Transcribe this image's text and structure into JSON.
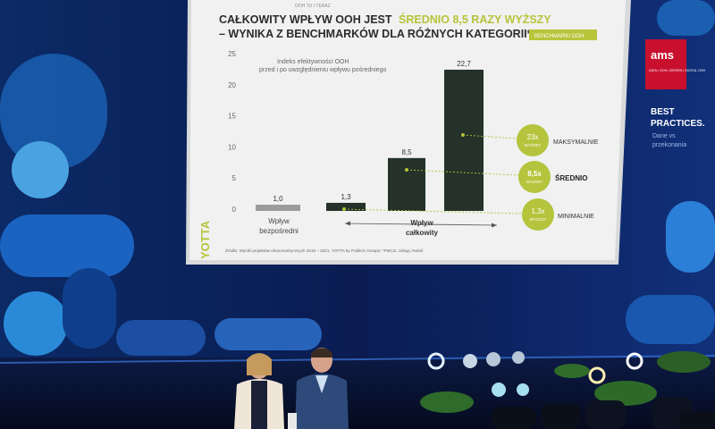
{
  "slide": {
    "header_small": "OOH TU I TERAZ",
    "title_line1": "CAŁKOWITY WPŁYW OOH JEST",
    "title_highlight": "ŚREDNIO 8,5 RAZY WYŻSZY",
    "title_line2": "– WYNIKA Z BENCHMARKÓW DLA RÓŻNYCH KATEGORII*",
    "tag": "BENCHMARKI OOH",
    "chart_note_line1": "Indeks efektywności OOH",
    "chart_note_line2": "przed i po uwzględnieniu wpływu pośredniego",
    "cat_direct_line1": "Wpływ",
    "cat_direct_line2": "bezpośredni",
    "cat_total_line1": "Wpływ",
    "cat_total_line2": "całkowity",
    "circles": [
      {
        "value": "23x",
        "sub": "WYŻSZY",
        "label": "MAKSYMALNIE"
      },
      {
        "value": "8,5x",
        "sub": "WYŻSZY",
        "label": "ŚREDNIO"
      },
      {
        "value": "1,3x",
        "sub": "WYŻSZY",
        "label": "MINIMALNIE"
      }
    ],
    "logo": "YOTTA",
    "source": "Źródło: Wyniki projektów ekonometrycznych 2016 – 2021, YOTTA by Publicis Groupe; *FMCG, Usługi, Retail"
  },
  "chart_data": {
    "type": "bar",
    "categories": [
      "Wpływ bezpośredni",
      "",
      "",
      ""
    ],
    "values": [
      1.0,
      1.3,
      8.5,
      22.7
    ],
    "value_labels": [
      "1,0",
      "1,3",
      "8,5",
      "22,7"
    ],
    "yticks": [
      "0",
      "5",
      "10",
      "15",
      "20",
      "25"
    ],
    "ylim": [
      0,
      25
    ],
    "colors": [
      "#9b9b9b",
      "#243229",
      "#243229",
      "#243229"
    ],
    "accent": "#b4c43c"
  },
  "side_panel": {
    "logo_text": "ams",
    "logo_sub": "DATA • OOH • DRIVEN • DIGITAL OOH",
    "heading_line1": "BEST",
    "heading_line2": "PRACTICES.",
    "sub_line1": "Dane vs",
    "sub_line2": "przekonania"
  }
}
